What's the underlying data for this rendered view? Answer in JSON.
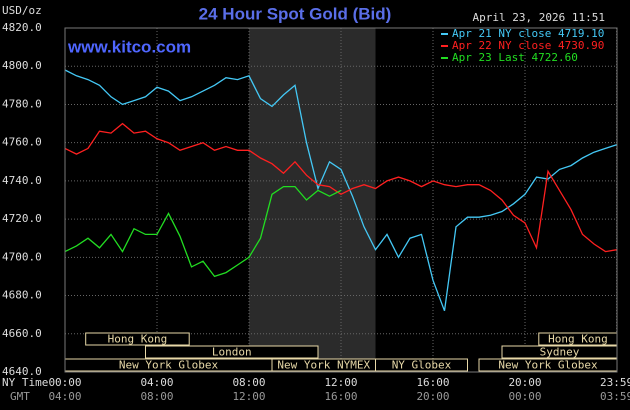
{
  "chart_data": {
    "type": "line",
    "title": "24 Hour Spot Gold (Bid)",
    "ylabel": "USD/oz",
    "watermark": "www.kitco.com",
    "timestamp": "April 23, 2026 11:51",
    "xlabel": "NY Time",
    "x2label": "GMT",
    "x": [
      0,
      0.5,
      1,
      1.5,
      2,
      2.5,
      3,
      3.5,
      4,
      4.5,
      5,
      5.5,
      6,
      6.5,
      7,
      7.5,
      8,
      8.5,
      9,
      9.5,
      10,
      10.5,
      11,
      11.5,
      12,
      12.5,
      13,
      13.5,
      14,
      14.5,
      15,
      15.5,
      16,
      16.5,
      17,
      17.5,
      18,
      18.5,
      19,
      19.5,
      20,
      20.5,
      21,
      21.5,
      22,
      22.5,
      23,
      23.5,
      24
    ],
    "series": [
      {
        "name": "Apr 21 NY close 4719.10",
        "color": "#44c8f5",
        "values": [
          4798,
          4795,
          4793,
          4790,
          4784,
          4780,
          4782,
          4784,
          4789,
          4787,
          4782,
          4784,
          4787,
          4790,
          4794,
          4793,
          4795,
          4783,
          4779,
          4785,
          4790,
          4760,
          4736,
          4750,
          4746,
          4732,
          4716,
          4704,
          4712,
          4700,
          4710,
          4712,
          4688,
          4672,
          4716,
          4721,
          4721,
          4722,
          4724,
          4728,
          4733,
          4742,
          4741,
          4746,
          4748,
          4752,
          4755,
          4757,
          4759
        ]
      },
      {
        "name": "Apr 22 NY close 4730.90",
        "color": "#ff2020",
        "values": [
          4757,
          4754,
          4757,
          4766,
          4765,
          4770,
          4765,
          4766,
          4762,
          4760,
          4756,
          4758,
          4760,
          4756,
          4758,
          4756,
          4756,
          4752,
          4749,
          4744,
          4750,
          4743,
          4738,
          4737,
          4733,
          4736,
          4738,
          4736,
          4740,
          4742,
          4740,
          4737,
          4740,
          4738,
          4737,
          4738,
          4738,
          4735,
          4730,
          4722,
          4718,
          4705,
          4745,
          4735,
          4725,
          4712,
          4707,
          4703,
          4704
        ]
      },
      {
        "name": "Apr 23 Last 4722.60",
        "color": "#22dd22",
        "values": [
          4703,
          4706,
          4710,
          4705,
          4712,
          4703,
          4715,
          4712,
          4712,
          4723,
          4711,
          4695,
          4698,
          4690,
          4692,
          4696,
          4700,
          4710,
          4733,
          4737,
          4737,
          4730,
          4735,
          4732,
          4735,
          null,
          null,
          null,
          null,
          null,
          null,
          null,
          null,
          null,
          null,
          null,
          null,
          null,
          null,
          null,
          null,
          null,
          null,
          null,
          null,
          null,
          null,
          null,
          null
        ]
      }
    ],
    "xlim": [
      0,
      24
    ],
    "xticks": [
      {
        "value": 0,
        "label": "00:00"
      },
      {
        "value": 4,
        "label": "04:00"
      },
      {
        "value": 8,
        "label": "08:00"
      },
      {
        "value": 12,
        "label": "12:00"
      },
      {
        "value": 16,
        "label": "16:00"
      },
      {
        "value": 20,
        "label": "20:00"
      },
      {
        "value": 23.983,
        "label": "23:59"
      }
    ],
    "x2ticks": [
      {
        "value": 0,
        "label": "04:00"
      },
      {
        "value": 4,
        "label": "08:00"
      },
      {
        "value": 8,
        "label": "12:00"
      },
      {
        "value": 12,
        "label": "16:00"
      },
      {
        "value": 16,
        "label": "20:00"
      },
      {
        "value": 20,
        "label": "00:00"
      },
      {
        "value": 23.983,
        "label": "03:59"
      }
    ],
    "ylim": [
      4640,
      4820
    ],
    "yticks": [
      {
        "value": 4640,
        "label": "4640.0"
      },
      {
        "value": 4660,
        "label": "4660.0"
      },
      {
        "value": 4680,
        "label": "4680.0"
      },
      {
        "value": 4700,
        "label": "4700.0"
      },
      {
        "value": 4720,
        "label": "4720.0"
      },
      {
        "value": 4740,
        "label": "4740.0"
      },
      {
        "value": 4760,
        "label": "4760.0"
      },
      {
        "value": 4780,
        "label": "4780.0"
      },
      {
        "value": 4800,
        "label": "4800.0"
      },
      {
        "value": 4820,
        "label": "4820.0"
      }
    ],
    "grid": true,
    "legend": "top-right",
    "shaded": [
      8,
      13.5
    ],
    "session_rows": [
      [
        {
          "label": "Hong Kong",
          "start": 0.9,
          "end": 5.4
        },
        {
          "label": "Hong Kong",
          "start": 20.6,
          "end": 24
        }
      ],
      [
        {
          "label": "London",
          "start": 3.5,
          "end": 11.0
        },
        {
          "label": "Sydney",
          "start": 19.0,
          "end": 24
        }
      ],
      [
        {
          "label": "New York Globex",
          "start": 0,
          "end": 9.0
        },
        {
          "label": "New York NYMEX",
          "start": 9.0,
          "end": 13.5
        },
        {
          "label": "NY Globex",
          "start": 13.5,
          "end": 17.5
        },
        {
          "label": "New York Globex",
          "start": 18.0,
          "end": 24
        }
      ]
    ]
  }
}
